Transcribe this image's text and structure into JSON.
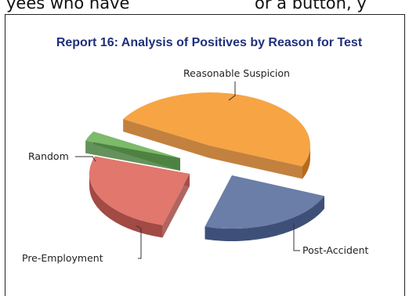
{
  "page_fragment": {
    "left": "yees  who  have",
    "right": "or a button, y"
  },
  "chart_data": {
    "type": "pie",
    "title": "Report 16: Analysis of Positives by Reason for Test",
    "exploded": true,
    "three_d": true,
    "slices": [
      {
        "label": "Reasonable Suspicion",
        "value": 48,
        "color": "#f7a444",
        "side_color": "#b76b1c"
      },
      {
        "label": "Post-Accident",
        "value": 23,
        "color": "#6a7ea8",
        "side_color": "#3f5078"
      },
      {
        "label": "Pre-Employment",
        "value": 26,
        "color": "#e1776d",
        "side_color": "#a24a44"
      },
      {
        "label": "Random",
        "value": 3,
        "color": "#7dba6a",
        "side_color": "#4a7f3e"
      }
    ]
  }
}
